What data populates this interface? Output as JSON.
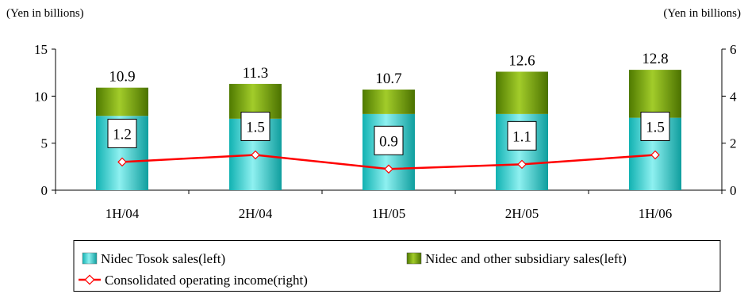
{
  "chart_data": {
    "type": "bar",
    "left_axis_title": "(Yen in billions)",
    "right_axis_title": "(Yen in billions)",
    "categories": [
      "1H/04",
      "2H/04",
      "1H/05",
      "2H/05",
      "1H/06"
    ],
    "left_ylim": [
      0,
      15
    ],
    "left_ticks": [
      "0",
      "5",
      "10",
      "15"
    ],
    "right_ylim": [
      0,
      6
    ],
    "right_ticks": [
      "0",
      "2",
      "4",
      "6"
    ],
    "series": [
      {
        "name": "Nidec Tosok sales(left)",
        "axis": "left",
        "stack": "sales",
        "color": "#33cccc",
        "values": [
          7.9,
          7.6,
          8.1,
          8.1,
          7.7
        ]
      },
      {
        "name": "Nidec and other subsidiary sales(left)",
        "axis": "left",
        "stack": "sales",
        "color": "#669900",
        "values": [
          3.0,
          3.7,
          2.6,
          4.5,
          5.1
        ]
      },
      {
        "name": "Consolidated operating income(right)",
        "axis": "right",
        "type": "line",
        "color": "#ff0000",
        "values": [
          1.2,
          1.5,
          0.9,
          1.1,
          1.5
        ]
      }
    ],
    "total_labels": [
      "10.9",
      "11.3",
      "10.7",
      "12.6",
      "12.8"
    ],
    "income_labels": [
      "1.2",
      "1.5",
      "0.9",
      "1.1",
      "1.5"
    ],
    "legend_position": "bottom",
    "grid": false
  }
}
